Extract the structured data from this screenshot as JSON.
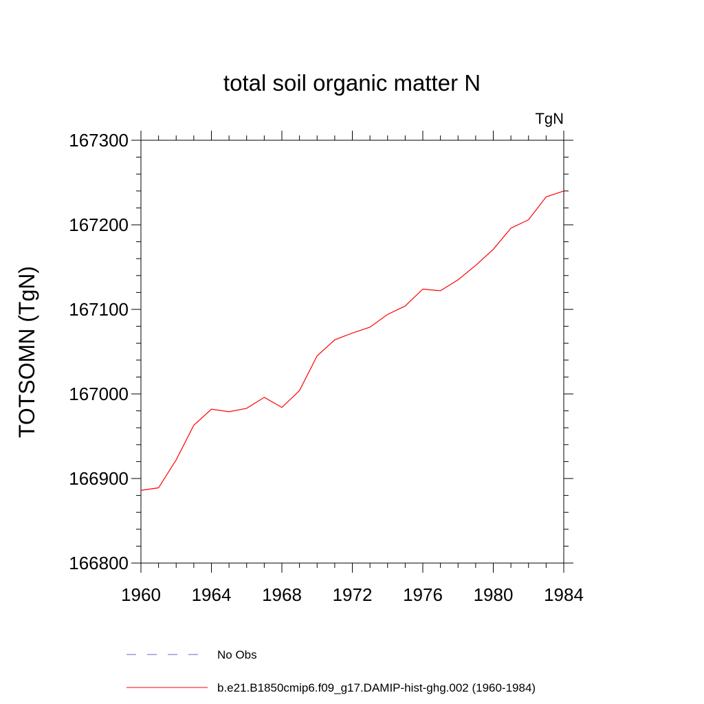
{
  "chart_data": {
    "type": "line",
    "title": "total soil organic matter N",
    "units_label": "TgN",
    "ylabel": "TOTSOMN  (TgN)",
    "xlabel": "",
    "xlim": [
      1960,
      1984
    ],
    "ylim": [
      166800,
      167300
    ],
    "x_ticks": [
      1960,
      1964,
      1968,
      1972,
      1976,
      1980,
      1984
    ],
    "y_ticks": [
      166800,
      166900,
      167000,
      167100,
      167200,
      167300
    ],
    "x_tick_labels": [
      "1960",
      "1964",
      "1968",
      "1972",
      "1976",
      "1980",
      "1984"
    ],
    "y_tick_labels": [
      "166800",
      "166900",
      "167000",
      "167100",
      "167200",
      "167300"
    ],
    "grid": false,
    "legend_position": "bottom",
    "series": [
      {
        "name": "No Obs",
        "color": "#6666cc",
        "style": "dashed",
        "x": [],
        "y": []
      },
      {
        "name": "b.e21.B1850cmip6.f09_g17.DAMIP-hist-ghg.002 (1960-1984)",
        "color": "#ff0000",
        "style": "solid",
        "x": [
          1960,
          1961,
          1962,
          1963,
          1964,
          1965,
          1966,
          1967,
          1968,
          1969,
          1970,
          1971,
          1972,
          1973,
          1974,
          1975,
          1976,
          1977,
          1978,
          1979,
          1980,
          1981,
          1982,
          1983,
          1984
        ],
        "y": [
          166886,
          166889,
          166922,
          166963,
          166982,
          166979,
          166983,
          166996,
          166984,
          167004,
          167045,
          167064,
          167072,
          167079,
          167094,
          167104,
          167124,
          167122,
          167135,
          167152,
          167171,
          167196,
          167206,
          167233,
          167240
        ]
      }
    ]
  }
}
